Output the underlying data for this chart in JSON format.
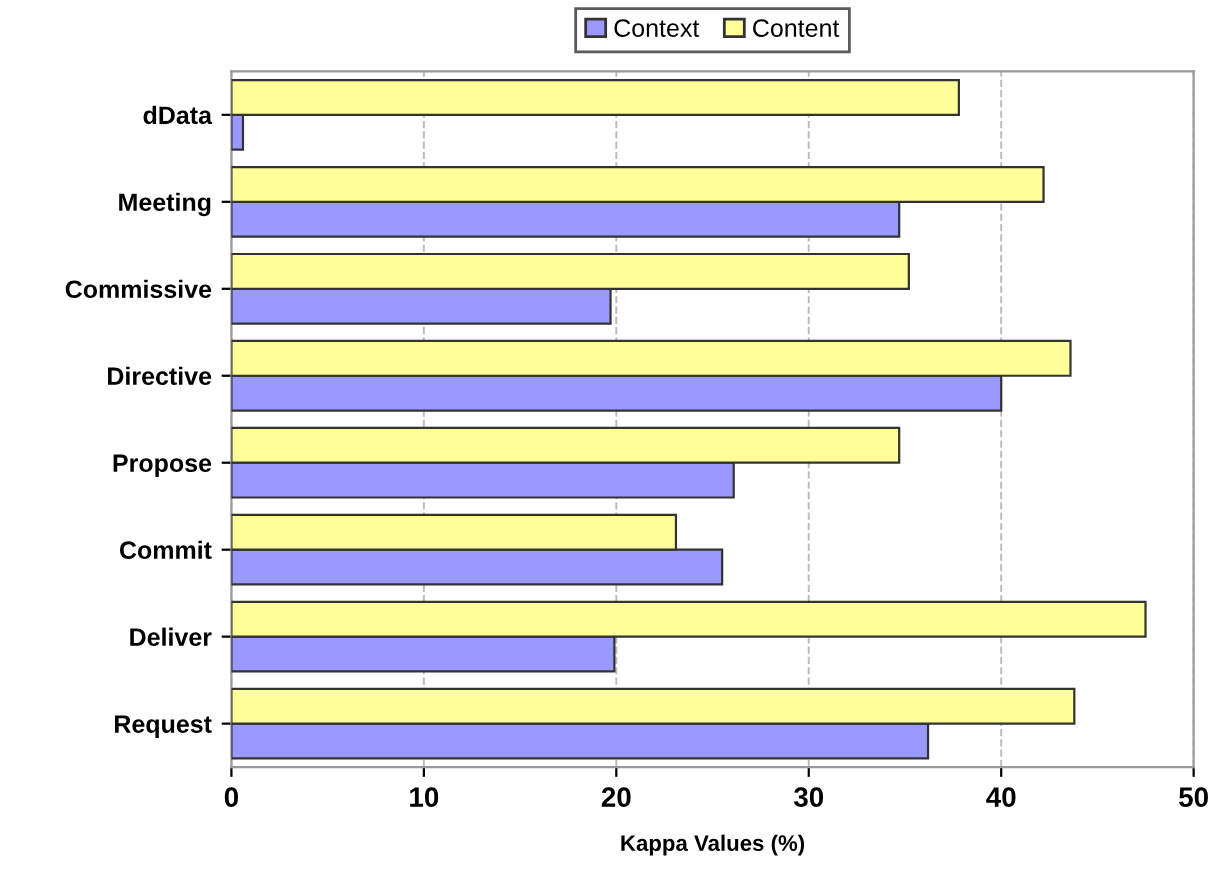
{
  "chart_data": {
    "type": "bar",
    "orientation": "horizontal",
    "xlabel": "Kappa Values (%)",
    "categories": [
      "dData",
      "Meeting",
      "Commissive",
      "Directive",
      "Propose",
      "Commit",
      "Deliver",
      "Request"
    ],
    "series": [
      {
        "name": "Context",
        "color": "#9999ff",
        "values": [
          0.6,
          34.7,
          19.7,
          40.0,
          26.1,
          25.5,
          19.9,
          36.2
        ]
      },
      {
        "name": "Content",
        "color": "#ffff99",
        "values": [
          37.8,
          42.2,
          35.2,
          43.6,
          34.7,
          23.1,
          47.5,
          43.8
        ]
      }
    ],
    "xlim": [
      0,
      50
    ],
    "xticks": [
      0,
      10,
      20,
      30,
      40,
      50
    ],
    "grid": "x",
    "legend": "top"
  }
}
